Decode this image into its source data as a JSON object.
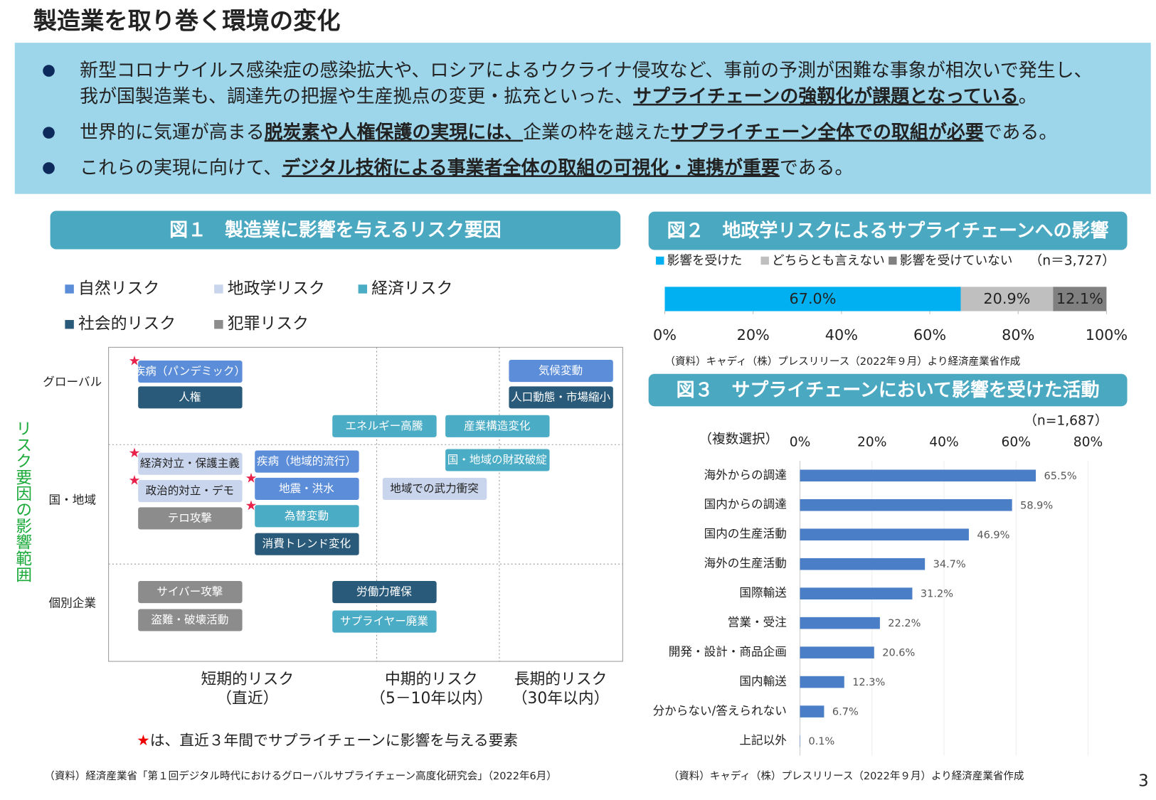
{
  "title": "製造業を取り巻く環境の変化",
  "bullets": [
    {
      "lines": [
        [
          {
            "text": "新型コロナウイルス感染症の感染拡大や、ロシアによるウクライナ侵攻など、事前の予測が困難な事象が相次いで発生し、"
          }
        ],
        [
          {
            "text": "我が国製造業も、調達先の把握や生産拠点の変更・拡充といった、"
          },
          {
            "text": "サプライチェーンの強靱化が課題となっている",
            "bold": true
          },
          {
            "text": "。"
          }
        ]
      ]
    },
    {
      "lines": [
        [
          {
            "text": "世界的に気運が高まる"
          },
          {
            "text": "脱炭素や人権保護の実現には、",
            "bold": true
          },
          {
            "text": "企業の枠を越えた"
          },
          {
            "text": "サプライチェーン全体での取組が必要",
            "bold": true
          },
          {
            "text": "である。"
          }
        ]
      ]
    },
    {
      "lines": [
        [
          {
            "text": "これらの実現に向けて、"
          },
          {
            "text": "デジタル技術による事業者全体の取組の可視化・連携が重要",
            "bold": true
          },
          {
            "text": "である。"
          }
        ]
      ]
    }
  ],
  "figure1": {
    "title": "図１　製造業に影響を与えるリスク要因",
    "legend": [
      {
        "name": "自然リスク",
        "color": "#5b8dd9"
      },
      {
        "name": "地政学リスク",
        "color": "#c9d5ec"
      },
      {
        "name": "経済リスク",
        "color": "#4bacc6"
      },
      {
        "name": "社会的リスク",
        "color": "#2a5a7a"
      },
      {
        "name": "犯罪リスク",
        "color": "#8c8c8c"
      }
    ],
    "y_axis_title": "リスク要因の影響範囲",
    "y_labels": [
      "グローバル",
      "国・地域",
      "個別企業"
    ],
    "x_labels": [
      [
        "短期的リスク",
        "（直近）"
      ],
      [
        "中期的リスク",
        "（5－10年以内）"
      ],
      [
        "長期的リスク",
        "（30年以内）"
      ]
    ],
    "star_symbol": "★",
    "items": [
      {
        "label": "疾病（パンデミック）",
        "category": 0,
        "star": true
      },
      {
        "label": "人権",
        "category": 3
      },
      {
        "label": "気候変動",
        "category": 0
      },
      {
        "label": "人口動態・市場縮小",
        "category": 3
      },
      {
        "label": "エネルギー高騰",
        "category": 2
      },
      {
        "label": "産業構造変化",
        "category": 2
      },
      {
        "label": "経済対立・保護主義",
        "category": 1,
        "star": true
      },
      {
        "label": "政治的対立・デモ",
        "category": 1,
        "star": true
      },
      {
        "label": "テロ攻撃",
        "category": 4
      },
      {
        "label": "疾病（地域的流行）",
        "category": 0
      },
      {
        "label": "地震・洪水",
        "category": 0,
        "star": true
      },
      {
        "label": "為替変動",
        "category": 2,
        "star": true
      },
      {
        "label": "消費トレンド変化",
        "category": 3
      },
      {
        "label": "国・地域の財政破綻",
        "category": 2
      },
      {
        "label": "地域での武力衝突",
        "category": 1
      },
      {
        "label": "サイバー攻撃",
        "category": 4
      },
      {
        "label": "盗難・破壊活動",
        "category": 4
      },
      {
        "label": "労働力確保",
        "category": 3
      },
      {
        "label": "サプライヤー廃業",
        "category": 2
      }
    ],
    "note": "は、直近３年間でサプライチェーンに影響を与える要素",
    "source": "（資料）経済産業省「第１回デジタル時代におけるグローバルサプライチェーン高度化研究会」（2022年6月）"
  },
  "chart_data": [
    {
      "type": "stacked_bar",
      "title": "図２　地政学リスクによるサプライチェーンへの影響",
      "n_label": "（n＝3,727）",
      "series": [
        {
          "name": "影響を受けた",
          "color": "#00b0f0",
          "values": [
            67.0
          ],
          "value_labels": [
            "67.0%"
          ]
        },
        {
          "name": "どちらとも言えない",
          "color": "#bfbfbf",
          "values": [
            20.9
          ],
          "value_labels": [
            "20.9%"
          ]
        },
        {
          "name": "影響を受けていない",
          "color": "#808080",
          "values": [
            12.1
          ],
          "value_labels": [
            "12.1%"
          ]
        }
      ],
      "xlim": [
        0,
        100
      ],
      "xticks": [
        {
          "value": 0,
          "label": "0%"
        },
        {
          "value": 20,
          "label": "20%"
        },
        {
          "value": 40,
          "label": "40%"
        },
        {
          "value": 60,
          "label": "60%"
        },
        {
          "value": 80,
          "label": "80%"
        },
        {
          "value": 100,
          "label": "100%"
        }
      ],
      "source": "（資料）キャディ（株）プレスリリース（2022年９月）より経済産業省作成"
    },
    {
      "type": "bar",
      "title": "図３　サプライチェーンにおいて影響を受けた活動",
      "subtitle": "（複数選択）",
      "n_label": "（n=1,687）",
      "categories": [
        "海外からの調達",
        "国内からの調達",
        "国内の生産活動",
        "海外の生産活動",
        "国際輸送",
        "営業・受注",
        "開発・設計・商品企画",
        "国内輸送",
        "分からない/答えられない",
        "上記以外"
      ],
      "values": [
        65.5,
        58.9,
        46.9,
        34.7,
        31.2,
        22.2,
        20.6,
        12.3,
        6.7,
        0.1
      ],
      "value_labels": [
        "65.5%",
        "58.9%",
        "46.9%",
        "34.7%",
        "31.2%",
        "22.2%",
        "20.6%",
        "12.3%",
        "6.7%",
        "0.1%"
      ],
      "color": "#4a7ec6",
      "grid": true,
      "xlim": [
        0,
        80
      ],
      "xticks": [
        {
          "value": 0,
          "label": "0%"
        },
        {
          "value": 20,
          "label": "20%"
        },
        {
          "value": 40,
          "label": "40%"
        },
        {
          "value": 60,
          "label": "60%"
        },
        {
          "value": 80,
          "label": "80%"
        }
      ],
      "source": "（資料）キャディ（株）プレスリリース（2022年９月）より経済産業省作成"
    }
  ],
  "page_number": "3"
}
